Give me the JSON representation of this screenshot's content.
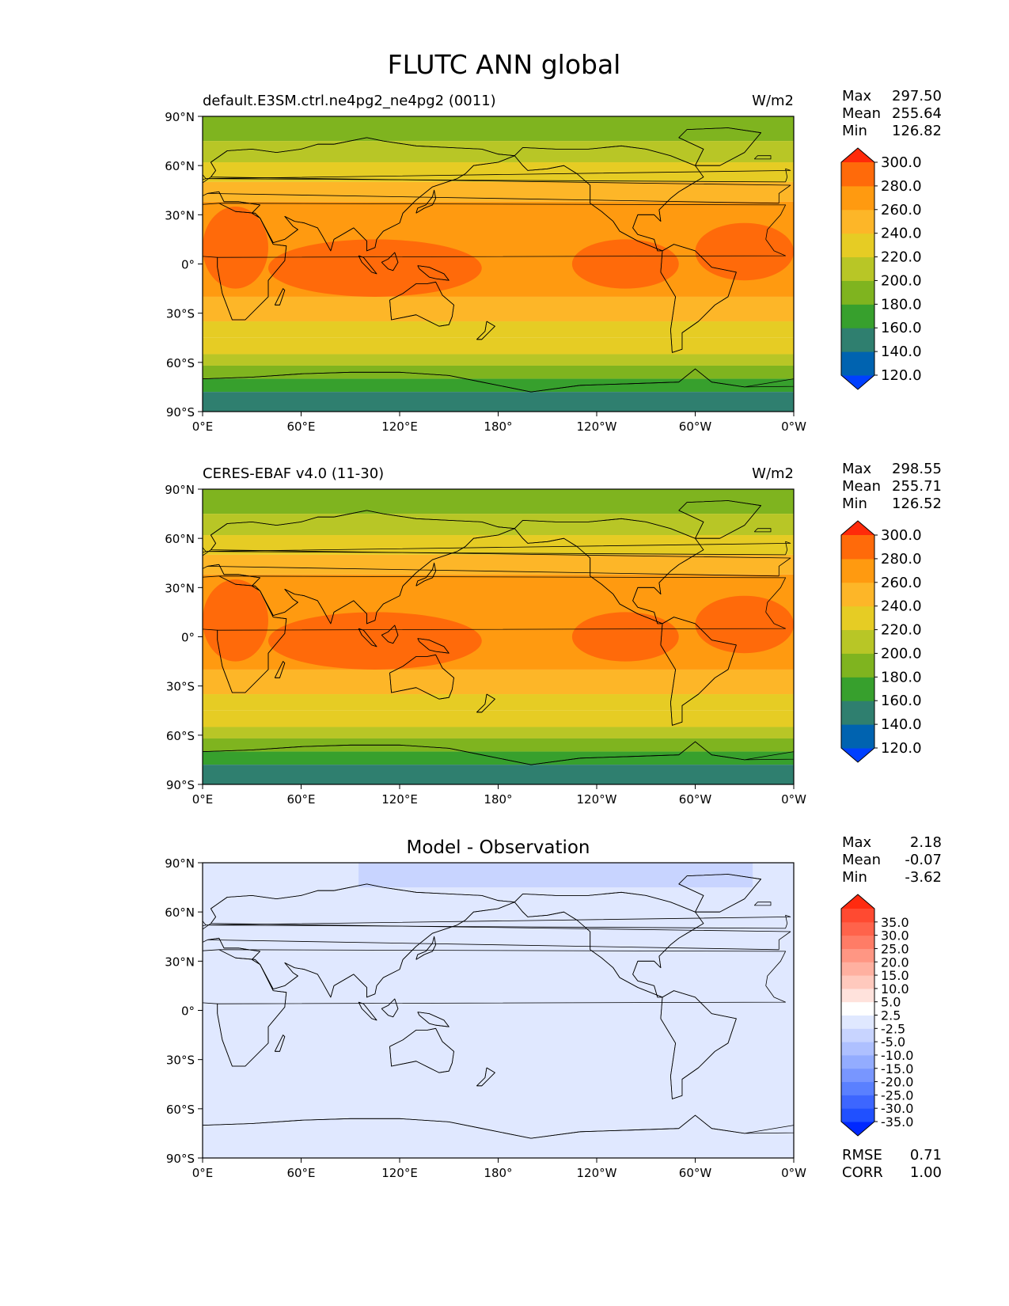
{
  "title": "FLUTC ANN global",
  "axes": {
    "lat_ticks": [
      "90°N",
      "60°N",
      "30°N",
      "0°",
      "30°S",
      "60°S",
      "90°S"
    ],
    "lon_ticks": [
      "0°E",
      "60°E",
      "120°E",
      "180°",
      "120°W",
      "60°W",
      "0°W"
    ]
  },
  "stat_labels": {
    "max": "Max",
    "mean": "Mean",
    "min": "Min",
    "rmse": "RMSE",
    "corr": "CORR"
  },
  "colors": {
    "abs_levels": [
      "#0040ff",
      "#0063b0",
      "#2f7f6f",
      "#37a02d",
      "#7fb41f",
      "#b8c626",
      "#e6cc24",
      "#fdb628",
      "#ff9a10",
      "#ff6a0a",
      "#ff2a0a"
    ],
    "diff_levels": [
      "#0028ff",
      "#2050ff",
      "#3d66ff",
      "#5a80ff",
      "#7896ff",
      "#93acff",
      "#aec0ff",
      "#c8d4ff",
      "#e0e8ff",
      "#ffffff",
      "#ffe2dc",
      "#ffc9bd",
      "#ffb0a0",
      "#ff9683",
      "#ff7c66",
      "#ff634b",
      "#ff4a31",
      "#ff2b10"
    ]
  },
  "chart_data": [
    {
      "type": "heatmap",
      "title": "default.E3SM.ctrl.ne4pg2_ne4pg2 (0011)",
      "units": "W/m2",
      "xlim": [
        0,
        360
      ],
      "ylim": [
        -90,
        90
      ],
      "stats": {
        "max": "297.50",
        "mean": "255.64",
        "min": "126.82"
      },
      "colorbar": {
        "levels": [
          "120.0",
          "140.0",
          "160.0",
          "180.0",
          "200.0",
          "220.0",
          "240.0",
          "260.0",
          "280.0",
          "300.0"
        ],
        "extend": "both"
      },
      "zonal_bands": [
        {
          "lat": [
            75,
            90
          ],
          "value": 190
        },
        {
          "lat": [
            62,
            75
          ],
          "value": 205
        },
        {
          "lat": [
            50,
            62
          ],
          "value": 225
        },
        {
          "lat": [
            38,
            50
          ],
          "value": 245
        },
        {
          "lat": [
            -20,
            38
          ],
          "value": 265
        },
        {
          "lat": [
            -35,
            -20
          ],
          "value": 255
        },
        {
          "lat": [
            -45,
            -35
          ],
          "value": 238
        },
        {
          "lat": [
            -55,
            -45
          ],
          "value": 225
        },
        {
          "lat": [
            -62,
            -55
          ],
          "value": 205
        },
        {
          "lat": [
            -70,
            -62
          ],
          "value": 190
        },
        {
          "lat": [
            -78,
            -70
          ],
          "value": 170
        },
        {
          "lat": [
            -90,
            -78
          ],
          "value": 145
        }
      ],
      "regional_maxima": [
        {
          "lon": [
            0,
            40
          ],
          "lat": [
            -15,
            35
          ],
          "value": 285
        },
        {
          "lon": [
            40,
            170
          ],
          "lat": [
            -20,
            15
          ],
          "value": 285
        },
        {
          "lon": [
            225,
            290
          ],
          "lat": [
            -15,
            15
          ],
          "value": 283
        },
        {
          "lon": [
            300,
            360
          ],
          "lat": [
            -10,
            25
          ],
          "value": 283
        }
      ]
    },
    {
      "type": "heatmap",
      "title": "CERES-EBAF v4.0 (11-30)",
      "units": "W/m2",
      "xlim": [
        0,
        360
      ],
      "ylim": [
        -90,
        90
      ],
      "stats": {
        "max": "298.55",
        "mean": "255.71",
        "min": "126.52"
      },
      "colorbar": {
        "levels": [
          "120.0",
          "140.0",
          "160.0",
          "180.0",
          "200.0",
          "220.0",
          "240.0",
          "260.0",
          "280.0",
          "300.0"
        ],
        "extend": "both"
      },
      "zonal_bands": [
        {
          "lat": [
            75,
            90
          ],
          "value": 190
        },
        {
          "lat": [
            62,
            75
          ],
          "value": 205
        },
        {
          "lat": [
            50,
            62
          ],
          "value": 225
        },
        {
          "lat": [
            38,
            50
          ],
          "value": 245
        },
        {
          "lat": [
            -20,
            38
          ],
          "value": 265
        },
        {
          "lat": [
            -35,
            -20
          ],
          "value": 255
        },
        {
          "lat": [
            -45,
            -35
          ],
          "value": 238
        },
        {
          "lat": [
            -55,
            -45
          ],
          "value": 225
        },
        {
          "lat": [
            -62,
            -55
          ],
          "value": 205
        },
        {
          "lat": [
            -70,
            -62
          ],
          "value": 190
        },
        {
          "lat": [
            -78,
            -70
          ],
          "value": 170
        },
        {
          "lat": [
            -90,
            -78
          ],
          "value": 145
        }
      ],
      "regional_maxima": [
        {
          "lon": [
            0,
            40
          ],
          "lat": [
            -15,
            35
          ],
          "value": 285
        },
        {
          "lon": [
            40,
            170
          ],
          "lat": [
            -20,
            15
          ],
          "value": 285
        },
        {
          "lon": [
            225,
            290
          ],
          "lat": [
            -15,
            15
          ],
          "value": 283
        },
        {
          "lon": [
            300,
            360
          ],
          "lat": [
            -10,
            25
          ],
          "value": 283
        }
      ]
    },
    {
      "type": "heatmap",
      "title": "Model - Observation",
      "units": "",
      "xlim": [
        0,
        360
      ],
      "ylim": [
        -90,
        90
      ],
      "stats": {
        "max": "2.18",
        "mean": "-0.07",
        "min": "-3.62",
        "rmse": "0.71",
        "corr": "1.00"
      },
      "colorbar": {
        "levels": [
          "-35.0",
          "-30.0",
          "-25.0",
          "-20.0",
          "-15.0",
          "-10.0",
          "-5.0",
          "-2.5",
          "2.5",
          "5.0",
          "10.0",
          "15.0",
          "20.0",
          "25.0",
          "30.0",
          "35.0"
        ],
        "extend": "both"
      },
      "anomaly_regions": [
        {
          "lon": [
            95,
            335
          ],
          "lat": [
            75,
            90
          ],
          "value": -3
        }
      ]
    }
  ]
}
